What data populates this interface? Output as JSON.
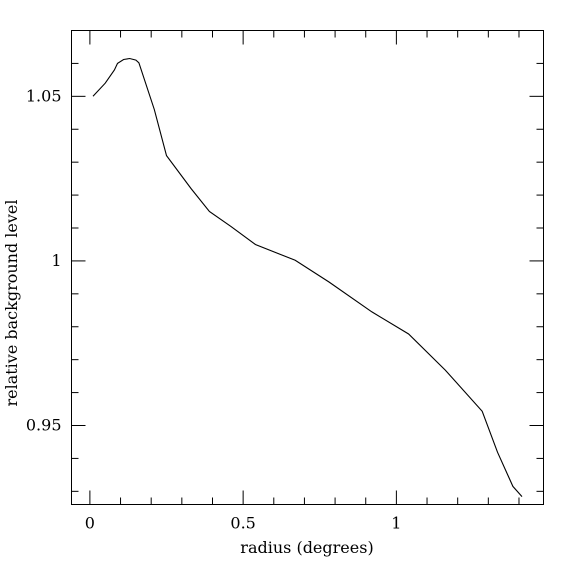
{
  "chart_data": {
    "type": "line",
    "title": "",
    "xlabel": "radius (degrees)",
    "ylabel": "relative background level",
    "xlim": [
      -0.06,
      1.48
    ],
    "ylim": [
      0.926,
      1.07
    ],
    "grid": false,
    "legend": "none",
    "line_color": "#000000",
    "x_ticks": [
      {
        "value": 0,
        "label": "0"
      },
      {
        "value": 0.5,
        "label": "0.5"
      },
      {
        "value": 1,
        "label": "1"
      }
    ],
    "x_minor_step": 0.1,
    "y_ticks": [
      {
        "value": 0.95,
        "label": "0.95"
      },
      {
        "value": 1.0,
        "label": "1"
      },
      {
        "value": 1.05,
        "label": "1.05"
      }
    ],
    "y_minor_step": 0.01,
    "series": [
      {
        "x": [
          0.01,
          0.05,
          0.08,
          0.09,
          0.11,
          0.13,
          0.15,
          0.16,
          0.21,
          0.25,
          0.33,
          0.39,
          0.46,
          0.54,
          0.67,
          0.78,
          0.92,
          1.04,
          1.16,
          1.28,
          1.33,
          1.38,
          1.41
        ],
        "y": [
          1.05,
          1.054,
          1.058,
          1.06,
          1.0612,
          1.0615,
          1.061,
          1.0602,
          1.046,
          1.032,
          1.022,
          1.015,
          1.0105,
          1.005,
          1.0002,
          0.9936,
          0.9845,
          0.9778,
          0.9668,
          0.9543,
          0.9419,
          0.9315,
          0.9284
        ]
      }
    ]
  }
}
